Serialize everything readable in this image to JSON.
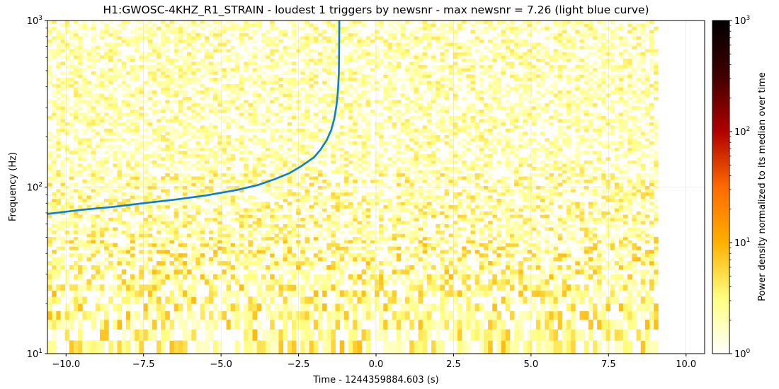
{
  "chart_data": {
    "type": "heatmap",
    "title": "H1:GWOSC-4KHZ_R1_STRAIN - loudest 1 triggers by newsnr - max newsnr = 7.26 (light blue curve)",
    "xlabel": "Time - 1244359884.603 (s)",
    "ylabel": "Frequency (Hz)",
    "xlim": [
      -10.6,
      10.6
    ],
    "ylim": [
      10,
      1000
    ],
    "yscale": "log",
    "grid": true,
    "x_ticks": [
      -10.0,
      -7.5,
      -5.0,
      -2.5,
      0.0,
      2.5,
      5.0,
      7.5,
      10.0
    ],
    "x_tick_labels": [
      "−10.0",
      "−7.5",
      "−5.0",
      "−2.5",
      "0.0",
      "2.5",
      "5.0",
      "7.5",
      "10.0"
    ],
    "y_ticks": [
      10,
      100,
      1000
    ],
    "spectrogram_time_range": [
      -10.6,
      9.1
    ],
    "colorbar": {
      "label": "Power density normalized to its median over time",
      "scale": "log",
      "range": [
        1,
        1000
      ],
      "ticks": [
        1,
        10,
        100,
        1000
      ],
      "colormap": "afmhot_r",
      "colors": [
        "#ffffff",
        "#ffff80",
        "#ffb000",
        "#ff6a00",
        "#b00000",
        "#400000",
        "#000000"
      ]
    },
    "series": [
      {
        "type": "line",
        "color": "#0a7de0",
        "x": [
          -10.6,
          -9.5,
          -8.5,
          -7.5,
          -6.5,
          -5.5,
          -4.5,
          -3.8,
          -3.3,
          -2.8,
          -2.4,
          -2.0,
          -1.8,
          -1.6,
          -1.45,
          -1.35,
          -1.28,
          -1.23,
          -1.2,
          -1.19,
          -1.185
        ],
        "y": [
          69,
          73,
          76,
          80,
          84,
          89,
          96,
          103,
          111,
          121,
          134,
          151,
          167,
          190,
          219,
          256,
          305,
          375,
          480,
          700,
          1000
        ]
      }
    ]
  }
}
